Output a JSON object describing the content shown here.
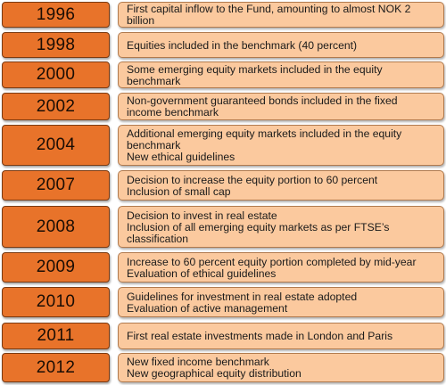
{
  "timeline": [
    {
      "year": "1996",
      "lines": [
        "First capital inflow to the Fund, amounting to almost NOK 2 billion"
      ]
    },
    {
      "year": "1998",
      "lines": [
        "Equities included in the benchmark (40 percent)"
      ]
    },
    {
      "year": "2000",
      "lines": [
        "Some emerging equity markets included in the equity benchmark"
      ]
    },
    {
      "year": "2002",
      "lines": [
        "Non-government guaranteed bonds included in the fixed income benchmark"
      ]
    },
    {
      "year": "2004",
      "lines": [
        "Additional emerging equity markets included in the equity benchmark",
        "New ethical guidelines"
      ]
    },
    {
      "year": "2007",
      "lines": [
        "Decision to increase the equity portion to 60 percent",
        "Inclusion of small cap"
      ]
    },
    {
      "year": "2008",
      "lines": [
        "Decision to invest in real estate",
        "Inclusion of all emerging equity markets as per FTSE’s classification"
      ]
    },
    {
      "year": "2009",
      "lines": [
        "Increase to 60 percent equity portion completed by mid-year",
        "Evaluation of ethical guidelines"
      ]
    },
    {
      "year": "2010",
      "lines": [
        "Guidelines for investment in real estate adopted",
        "Evaluation of active management"
      ]
    },
    {
      "year": "2011",
      "lines": [
        "First real estate investments made in London and Paris"
      ]
    },
    {
      "year": "2012",
      "lines": [
        "New fixed income benchmark",
        "New geographical equity distribution"
      ]
    }
  ],
  "colors": {
    "year_fill": "#e8732a",
    "description_fill": "#fbc99e"
  }
}
